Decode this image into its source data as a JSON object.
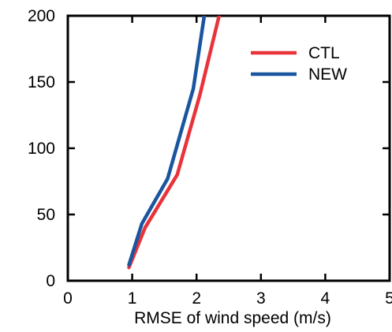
{
  "chart_data": {
    "type": "line",
    "xlabel": "RMSE of wind speed (m/s)",
    "ylabel": "",
    "xlim": [
      0,
      5
    ],
    "ylim": [
      0,
      200
    ],
    "x_ticks": [
      0,
      1,
      2,
      3,
      4,
      5
    ],
    "y_ticks": [
      0,
      50,
      100,
      150,
      200
    ],
    "x_tick_labels": [
      "0",
      "1",
      "2",
      "3",
      "4",
      "5"
    ],
    "y_tick_labels": [
      "0",
      "50",
      "100",
      "150",
      "200"
    ],
    "grid": false,
    "legend_position": "top-right",
    "series": [
      {
        "name": "CTL",
        "color": "#e8333a",
        "points": [
          [
            0.95,
            10
          ],
          [
            1.2,
            40
          ],
          [
            1.7,
            80
          ],
          [
            2.05,
            140
          ],
          [
            2.35,
            200
          ]
        ]
      },
      {
        "name": "NEW",
        "color": "#1a55a0",
        "points": [
          [
            0.95,
            12
          ],
          [
            1.15,
            43
          ],
          [
            1.55,
            77
          ],
          [
            1.95,
            145
          ],
          [
            2.12,
            200
          ]
        ]
      }
    ]
  }
}
